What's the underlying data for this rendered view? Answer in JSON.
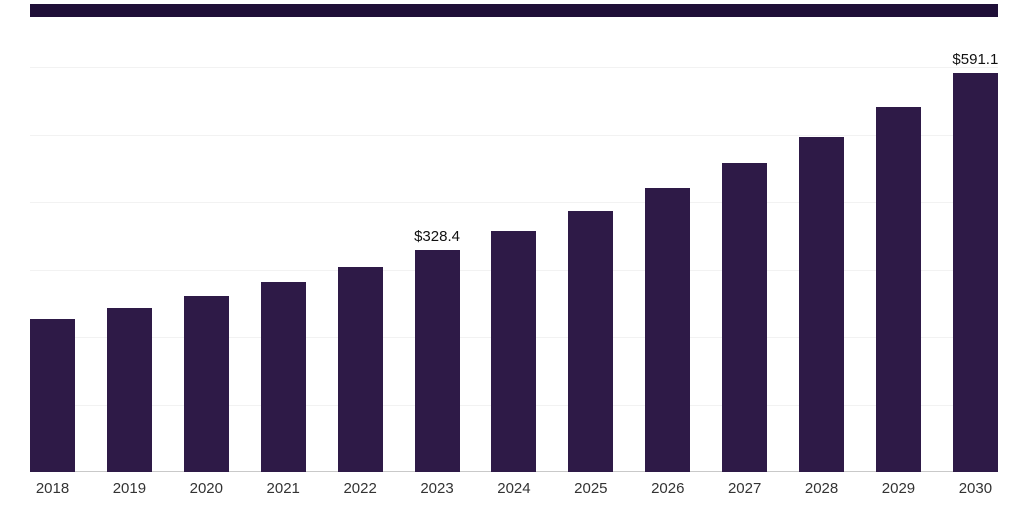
{
  "chart_data": {
    "type": "bar",
    "title": "",
    "xlabel": "",
    "ylabel": "",
    "categories": [
      "2018",
      "2019",
      "2020",
      "2021",
      "2022",
      "2023",
      "2024",
      "2025",
      "2026",
      "2027",
      "2028",
      "2029",
      "2030"
    ],
    "values": [
      227,
      243,
      261,
      281,
      304,
      328.4,
      357,
      387,
      421,
      458,
      497,
      541,
      591.1
    ],
    "data_labels": [
      null,
      null,
      null,
      null,
      null,
      "$328.4",
      null,
      null,
      null,
      null,
      null,
      null,
      "$591.1"
    ],
    "ylim": [
      0,
      600
    ],
    "grid": true,
    "gridline_values": [
      100,
      200,
      300,
      400,
      500,
      600
    ],
    "legend_position": "none"
  },
  "colors": {
    "bar": "#2e1a47",
    "top_banner": "#1f0f38",
    "gridline": "#f2f2f2",
    "baseline": "#c9c9c9",
    "label_text": "#111111",
    "axis_text": "#333333",
    "background": "#ffffff"
  }
}
